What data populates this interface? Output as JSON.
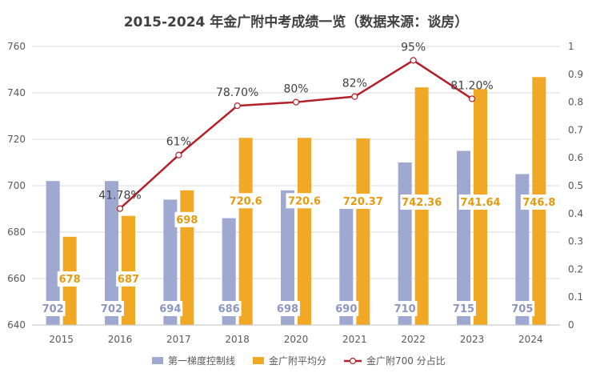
{
  "chart_data": {
    "type": "bar",
    "title": "2015-2024 年金广附中考成绩一览（数据来源：谈房）",
    "categories": [
      "2015",
      "2016",
      "2017",
      "2018",
      "2020",
      "2021",
      "2022",
      "2023",
      "2024"
    ],
    "y_left": {
      "min": 640,
      "max": 760,
      "ticks": [
        "640",
        "660",
        "680",
        "700",
        "720",
        "740",
        "760"
      ]
    },
    "y_right": {
      "min": 0,
      "max": 1,
      "ticks": [
        "0",
        "0.1",
        "0.2",
        "0.3",
        "0.4",
        "0.5",
        "0.6",
        "0.7",
        "0.8",
        "0.9",
        "1"
      ]
    },
    "grid": true,
    "legend_position": "bottom",
    "series": [
      {
        "name": "第一梯度控制线",
        "kind": "bar",
        "axis": "left",
        "color": "#9FA8D0",
        "values": [
          702,
          702,
          694,
          686,
          698,
          690,
          710,
          715,
          705
        ],
        "labels": [
          "702",
          "702",
          "694",
          "686",
          "698",
          "690",
          "710",
          "715",
          "705"
        ],
        "label_color": "#8C96C0"
      },
      {
        "name": "金广附平均分",
        "kind": "bar",
        "axis": "left",
        "color": "#F0A825",
        "values": [
          678,
          687,
          698,
          720.6,
          720.6,
          720.37,
          742.36,
          741.64,
          746.8
        ],
        "labels": [
          "678",
          "687",
          "698",
          "720.6",
          "720.6",
          "720.37",
          "742.36",
          "741.64",
          "746.8"
        ],
        "label_color": "#E69A10"
      },
      {
        "name": "金广附700 分占比",
        "kind": "line",
        "axis": "right",
        "color": "#B3202A",
        "values": [
          null,
          0.4178,
          0.61,
          0.787,
          0.8,
          0.82,
          0.95,
          0.812,
          null
        ],
        "labels": [
          "",
          "41.78%",
          "61%",
          "78.70%",
          "80%",
          "82%",
          "95%",
          "81.20%",
          ""
        ]
      }
    ]
  }
}
